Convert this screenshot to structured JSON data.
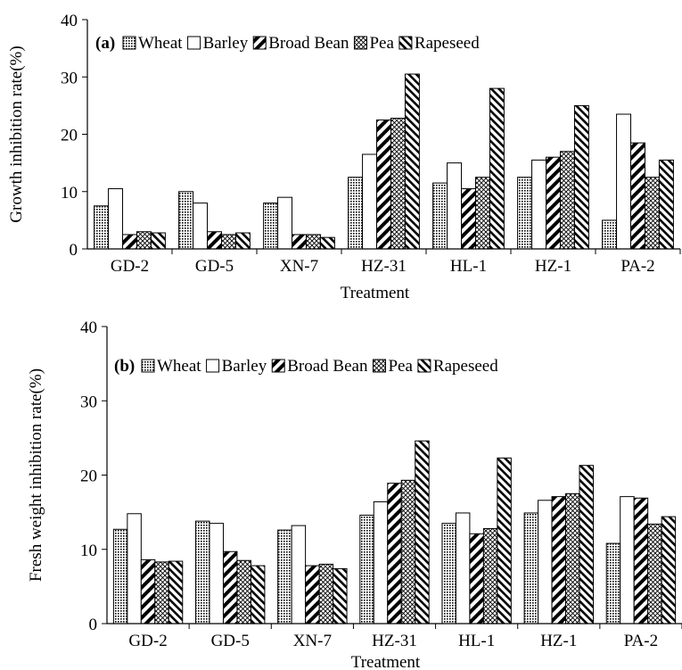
{
  "chart_data": [
    {
      "type": "bar",
      "panel_label": "(a)",
      "xlabel": "Treatment",
      "ylabel": "Growth inhibition rate(%)",
      "ylim": [
        0,
        40
      ],
      "yticks": [
        "0",
        "10",
        "20",
        "30",
        "40"
      ],
      "legend_position": "top-left",
      "categories": [
        "GD-2",
        "GD-5",
        "XN-7",
        "HZ-31",
        "HL-1",
        "HZ-1",
        "PA-2"
      ],
      "series": [
        {
          "name": "Wheat",
          "values": [
            7.5,
            10,
            8,
            12.5,
            11.5,
            12.5,
            5
          ]
        },
        {
          "name": "Barley",
          "values": [
            10.5,
            8,
            9,
            16.5,
            15,
            15.5,
            23.5
          ]
        },
        {
          "name": "Broad Bean",
          "values": [
            2.5,
            3,
            2.5,
            22.5,
            10.5,
            16,
            18.5
          ]
        },
        {
          "name": "Pea",
          "values": [
            3,
            2.5,
            2.5,
            22.8,
            12.5,
            17,
            12.5
          ]
        },
        {
          "name": "Rapeseed",
          "values": [
            2.8,
            2.8,
            2,
            30.5,
            28,
            25,
            15.5
          ]
        }
      ]
    },
    {
      "type": "bar",
      "panel_label": "(b)",
      "xlabel": "Treatment",
      "ylabel": "Fresh weight inhibition rate(%)",
      "ylim": [
        0,
        40
      ],
      "yticks": [
        "0",
        "10",
        "20",
        "30",
        "40"
      ],
      "legend_position": "top-left",
      "categories": [
        "GD-2",
        "GD-5",
        "XN-7",
        "HZ-31",
        "HL-1",
        "HZ-1",
        "PA-2"
      ],
      "series": [
        {
          "name": "Wheat",
          "values": [
            12.7,
            13.8,
            12.6,
            14.6,
            13.5,
            14.9,
            10.8
          ]
        },
        {
          "name": "Barley",
          "values": [
            14.8,
            13.5,
            13.2,
            16.4,
            14.9,
            16.6,
            17.1
          ]
        },
        {
          "name": "Broad Bean",
          "values": [
            8.6,
            9.7,
            7.8,
            18.9,
            12.1,
            17.1,
            16.9
          ]
        },
        {
          "name": "Pea",
          "values": [
            8.3,
            8.5,
            8,
            19.3,
            12.8,
            17.5,
            13.4
          ]
        },
        {
          "name": "Rapeseed",
          "values": [
            8.4,
            7.8,
            7.4,
            24.6,
            22.3,
            21.3,
            14.4
          ]
        }
      ]
    }
  ]
}
